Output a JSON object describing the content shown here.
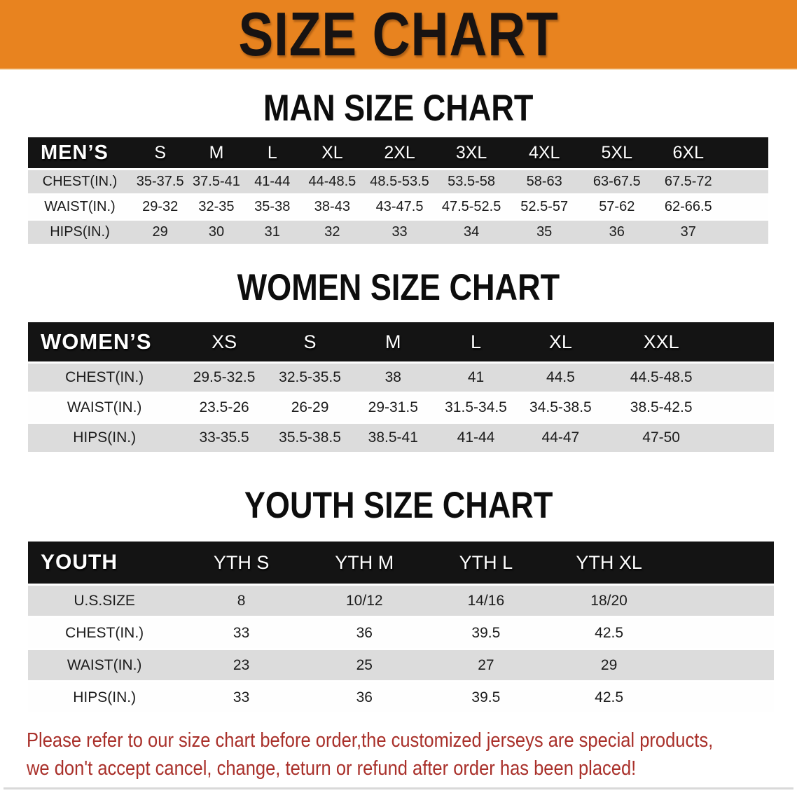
{
  "banner": {
    "title": "SIZE CHART"
  },
  "sections": [
    {
      "heading": "MAN SIZE CHART",
      "group_label": "MEN’S",
      "columns": [
        "S",
        "M",
        "L",
        "XL",
        "2XL",
        "3XL",
        "4XL",
        "5XL",
        "6XL"
      ],
      "rows": [
        {
          "label": "CHEST(IN.)",
          "values": [
            "35-37.5",
            "37.5-41",
            "41-44",
            "44-48.5",
            "48.5-53.5",
            "53.5-58",
            "58-63",
            "63-67.5",
            "67.5-72"
          ]
        },
        {
          "label": "WAIST(IN.)",
          "values": [
            "29-32",
            "32-35",
            "35-38",
            "38-43",
            "43-47.5",
            "47.5-52.5",
            "52.5-57",
            "57-62",
            "62-66.5"
          ]
        },
        {
          "label": "HIPS(IN.)",
          "values": [
            "29",
            "30",
            "31",
            "32",
            "33",
            "34",
            "35",
            "36",
            "37"
          ]
        }
      ]
    },
    {
      "heading": "WOMEN SIZE CHART",
      "group_label": "WOMEN’S",
      "columns": [
        "XS",
        "S",
        "M",
        "L",
        "XL",
        "XXL"
      ],
      "rows": [
        {
          "label": "CHEST(IN.)",
          "values": [
            "29.5-32.5",
            "32.5-35.5",
            "38",
            "41",
            "44.5",
            "44.5-48.5"
          ]
        },
        {
          "label": "WAIST(IN.)",
          "values": [
            "23.5-26",
            "26-29",
            "29-31.5",
            "31.5-34.5",
            "34.5-38.5",
            "38.5-42.5"
          ]
        },
        {
          "label": "HIPS(IN.)",
          "values": [
            "33-35.5",
            "35.5-38.5",
            "38.5-41",
            "41-44",
            "44-47",
            "47-50"
          ]
        }
      ]
    },
    {
      "heading": "YOUTH SIZE CHART",
      "group_label": "YOUTH",
      "columns": [
        "YTH S",
        "YTH M",
        "YTH L",
        "YTH XL"
      ],
      "rows": [
        {
          "label": "U.S.SIZE",
          "values": [
            "8",
            "10/12",
            "14/16",
            "18/20"
          ]
        },
        {
          "label": "CHEST(IN.)",
          "values": [
            "33",
            "36",
            "39.5",
            "42.5"
          ]
        },
        {
          "label": "WAIST(IN.)",
          "values": [
            "23",
            "25",
            "27",
            "29"
          ]
        },
        {
          "label": "HIPS(IN.)",
          "values": [
            "33",
            "36",
            "39.5",
            "42.5"
          ]
        }
      ]
    }
  ],
  "disclaimer": {
    "line1": "Please refer to our size chart before order,the customized jerseys are special products,",
    "line2": "we don't accept cancel, change, teturn or refund after order has been placed!"
  },
  "colors": {
    "banner_bg": "#E8831F",
    "header_bar": "#141414",
    "stripe_gray": "#DCDCDC",
    "disclaimer_red": "#A9302A"
  }
}
